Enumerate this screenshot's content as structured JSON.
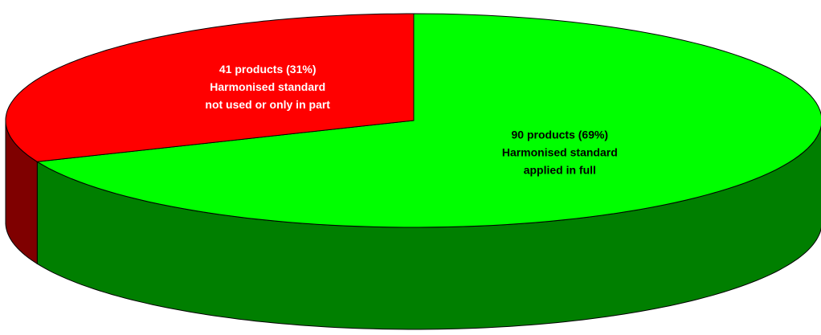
{
  "chart_data": {
    "type": "pie",
    "categories": [
      [
        "Harmonised standard",
        "not used or only in part"
      ],
      [
        "Harmonised standard",
        "applied in full"
      ]
    ],
    "values": [
      41,
      90
    ],
    "value_labels": [
      "41 products (31%)",
      "90 products (69%)"
    ],
    "colors": [
      "#ff0000",
      "#00ff00"
    ],
    "label_colors": [
      "#ffffff",
      "#000000"
    ]
  }
}
